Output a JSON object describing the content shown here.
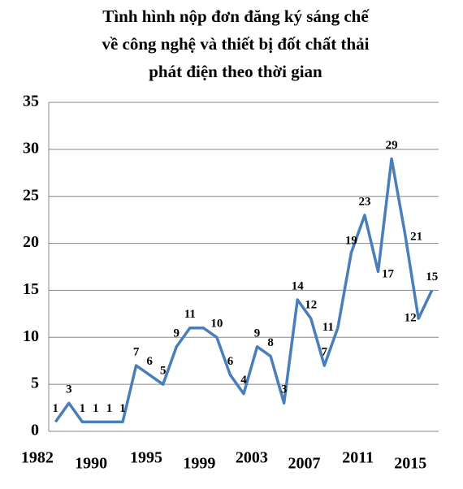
{
  "chart_data": {
    "type": "line",
    "title": [
      "Tình hình nộp đơn đăng ký sáng chế",
      "về công nghệ và thiết bị đốt chất thải",
      "phát điện theo thời gian"
    ],
    "categories": [
      null,
      null,
      null,
      null,
      null,
      null,
      null,
      null,
      null,
      null,
      null,
      null,
      null,
      null,
      null,
      null,
      null,
      null,
      null,
      null,
      null,
      null,
      null,
      null,
      null,
      null,
      null,
      null,
      null
    ],
    "xticks": [
      {
        "value": -1.35,
        "label": "1982"
      },
      {
        "value": 2.65,
        "label": "1990"
      },
      {
        "value": 6.75,
        "label": "1995"
      },
      {
        "value": 10.7,
        "label": "1999"
      },
      {
        "value": 14.6,
        "label": "2003"
      },
      {
        "value": 18.5,
        "label": "2007"
      },
      {
        "value": 22.5,
        "label": "2011"
      },
      {
        "value": 26.4,
        "label": "2015"
      }
    ],
    "series": [
      {
        "name": null,
        "color": "#4a7ebb",
        "values": [
          1,
          3,
          1,
          1,
          1,
          1,
          7,
          6,
          5,
          9,
          11,
          11,
          10,
          6,
          4,
          9,
          8,
          3,
          14,
          12,
          7,
          11,
          19,
          23,
          17,
          29,
          21,
          12,
          15
        ],
        "value_labels": [
          "1",
          "3",
          "1",
          "1",
          "1",
          "1",
          "7",
          "6",
          "5",
          "9",
          "11",
          null,
          "10",
          "6",
          "4",
          "9",
          "8",
          "3",
          "14",
          "12",
          "7",
          "11",
          "19",
          "23",
          "17",
          "29",
          "21",
          "12",
          "15"
        ]
      }
    ],
    "ylim": [
      0,
      35
    ],
    "yticks": [
      0,
      5,
      10,
      15,
      20,
      25,
      30,
      35
    ],
    "grid": true
  }
}
